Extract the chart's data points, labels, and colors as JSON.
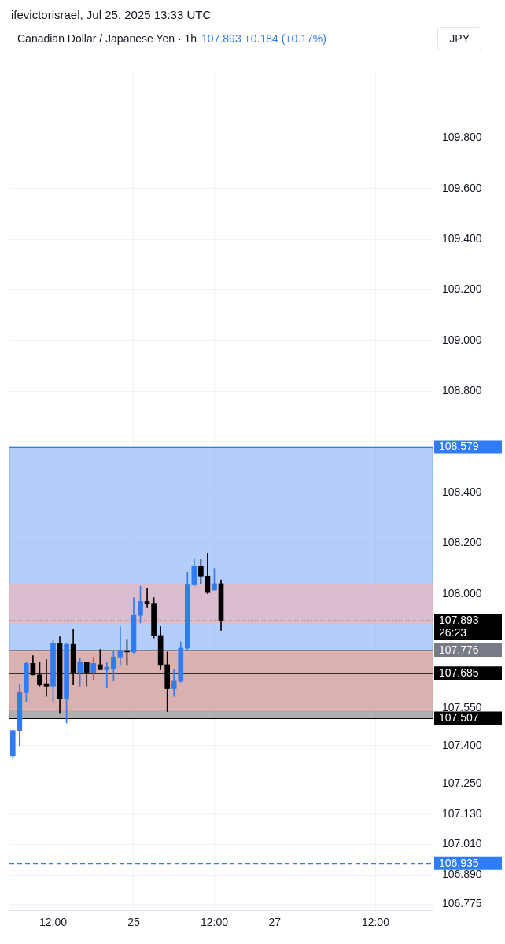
{
  "chart_data": {
    "type": "candlestick",
    "title": "Canadian Dollar / Japanese Yen · 1h",
    "subtitle": "107.893 +0.184 (+0.17%)",
    "ylabel": "JPY",
    "annotations": [
      "ifevictorisrael, Jul 25, 2025 13:33 UTC"
    ],
    "categories": [
      null,
      null,
      null,
      null,
      null,
      null,
      "12:00",
      null,
      null,
      null,
      null,
      null,
      null,
      null,
      null,
      null,
      null,
      null,
      "25",
      null,
      null,
      null,
      null,
      null,
      null,
      null,
      null,
      null,
      null,
      null,
      "12:00",
      null,
      null,
      null,
      null,
      null,
      null,
      null,
      null,
      "27",
      null,
      null,
      null,
      null,
      null,
      null,
      null,
      null,
      null,
      null,
      null,
      null,
      null,
      null,
      "12:00",
      null,
      null,
      null,
      null,
      null,
      null,
      null,
      null
    ],
    "ohlc": [
      [
        107.36,
        107.46,
        107.35,
        107.46
      ],
      [
        107.46,
        107.64,
        107.4,
        107.61
      ],
      [
        107.61,
        107.73,
        107.575,
        107.725
      ],
      [
        107.725,
        107.755,
        107.68,
        107.68
      ],
      [
        107.68,
        107.73,
        107.635,
        107.64
      ],
      [
        107.645,
        107.74,
        107.595,
        107.635
      ],
      [
        107.635,
        107.82,
        107.57,
        107.805
      ],
      [
        107.805,
        107.83,
        107.53,
        107.585
      ],
      [
        107.585,
        107.805,
        107.49,
        107.8
      ],
      [
        107.8,
        107.86,
        107.64,
        107.69
      ],
      [
        107.69,
        107.745,
        107.635,
        107.73
      ],
      [
        107.73,
        107.73,
        107.635,
        107.69
      ],
      [
        107.69,
        107.75,
        107.66,
        107.725
      ],
      [
        107.72,
        107.78,
        107.7,
        107.7
      ],
      [
        107.7,
        107.73,
        107.63,
        107.71
      ],
      [
        107.705,
        107.775,
        107.655,
        107.75
      ],
      [
        107.75,
        107.87,
        107.72,
        107.775
      ],
      [
        107.775,
        107.82,
        107.72,
        107.77
      ],
      [
        107.77,
        107.985,
        107.765,
        107.915
      ],
      [
        107.915,
        108.03,
        107.885,
        107.97
      ],
      [
        107.97,
        108.02,
        107.945,
        107.96
      ],
      [
        107.96,
        107.985,
        107.825,
        107.835
      ],
      [
        107.835,
        107.87,
        107.7,
        107.72
      ],
      [
        107.72,
        107.77,
        107.535,
        107.625
      ],
      [
        107.625,
        107.7,
        107.595,
        107.655
      ],
      [
        107.655,
        107.81,
        107.65,
        107.785
      ],
      [
        107.785,
        108.085,
        107.78,
        108.035
      ],
      [
        108.035,
        108.14,
        108.03,
        108.11
      ],
      [
        108.11,
        108.135,
        108.04,
        108.07
      ],
      [
        108.07,
        108.16,
        108.0,
        108.005
      ],
      [
        108.015,
        108.1,
        108.015,
        108.04
      ],
      [
        108.04,
        108.055,
        107.855,
        107.893
      ],
      null,
      null,
      null,
      null,
      null,
      null,
      null,
      null,
      null,
      null,
      null,
      null,
      null,
      null,
      null,
      null,
      null,
      null,
      null,
      null,
      null,
      null,
      null,
      null,
      null,
      null,
      null,
      null,
      null,
      null,
      null
    ],
    "colors": [
      "#2e7cf6",
      "#2e7cf6",
      "#2e7cf6",
      "#000000",
      "#000000",
      "#000000",
      "#2e7cf6",
      "#000000",
      "#2e7cf6",
      "#000000",
      "#2e7cf6",
      "#000000",
      "#2e7cf6",
      "#000000",
      "#2e7cf6",
      "#2e7cf6",
      "#2e7cf6",
      "#000000",
      "#2e7cf6",
      "#2e7cf6",
      "#000000",
      "#000000",
      "#000000",
      "#000000",
      "#2e7cf6",
      "#2e7cf6",
      "#2e7cf6",
      "#2e7cf6",
      "#000000",
      "#000000",
      "#2e7cf6",
      "#000000",
      null,
      null,
      null,
      null,
      null,
      null,
      null,
      null,
      null,
      null,
      null,
      null,
      null,
      null,
      null,
      null,
      null,
      null,
      null,
      null,
      null,
      null,
      null,
      null,
      null,
      null,
      null,
      null,
      null,
      null,
      null
    ],
    "ylim": [
      106.75,
      110.07
    ],
    "yticks": [
      {
        "value": 109.8,
        "label": "109.800"
      },
      {
        "value": 109.6,
        "label": "109.600"
      },
      {
        "value": 109.4,
        "label": "109.400"
      },
      {
        "value": 109.2,
        "label": "109.200"
      },
      {
        "value": 109.0,
        "label": "109.000"
      },
      {
        "value": 108.8,
        "label": "108.800"
      },
      {
        "value": 108.6,
        "label": null
      },
      {
        "value": 108.4,
        "label": "108.400"
      },
      {
        "value": 108.2,
        "label": "108.200"
      },
      {
        "value": 108.0,
        "label": "108.000"
      },
      {
        "value": 107.55,
        "label": "107.550"
      },
      {
        "value": 107.4,
        "label": "107.400"
      },
      {
        "value": 107.25,
        "label": "107.250"
      },
      {
        "value": 107.13,
        "label": "107.130"
      },
      {
        "value": 107.01,
        "label": "107.010"
      },
      {
        "value": 106.89,
        "label": "106.890"
      },
      {
        "value": 106.775,
        "label": "106.775"
      }
    ],
    "bands": [
      {
        "axis": "y",
        "from": 107.776,
        "to": 108.579,
        "color": "#82acf8"
      },
      {
        "axis": "y",
        "from": 107.507,
        "to": 107.776,
        "color": "#7d7a7a"
      },
      {
        "axis": "y",
        "from": 107.884,
        "to": 108.037,
        "color": "#f3b3b3"
      },
      {
        "axis": "y",
        "from": 107.544,
        "to": 107.771,
        "color": "#f3b3b3"
      }
    ],
    "ref_lines": [
      {
        "axis": "y",
        "value": 108.579,
        "label": "108.579",
        "color": "#2e7cf6",
        "line_style": "solid"
      },
      {
        "axis": "y",
        "value": 107.893,
        "label": "107.893\n26:23",
        "color": "#000000",
        "line_style": "dotted"
      },
      {
        "axis": "y",
        "value": 107.776,
        "label": "107.776",
        "color": "#787b86",
        "line_style": "solid"
      },
      {
        "axis": "y",
        "value": 107.685,
        "label": "107.685",
        "color": "#000000",
        "line_style": "solid"
      },
      {
        "axis": "y",
        "value": 107.507,
        "label": "107.507",
        "color": "#000000",
        "line_style": "solid"
      },
      {
        "axis": "y",
        "value": 106.935,
        "label": "106.935",
        "color": "#2e7cf6",
        "line_style": "dashed"
      }
    ],
    "grid": true,
    "legend": false
  }
}
